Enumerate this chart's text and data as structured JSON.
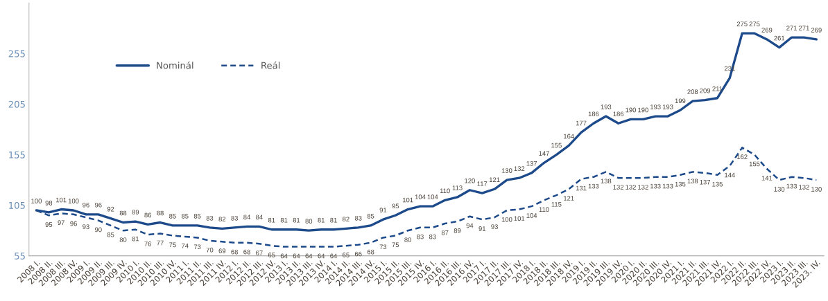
{
  "chart_data": {
    "type": "line",
    "categories": [
      "2008 I.",
      "2008 II.",
      "2008 III.",
      "2008 IV.",
      "2009 I.",
      "2009 II.",
      "2009 III.",
      "2009 IV.",
      "2010 I.",
      "2010 II.",
      "2010 III.",
      "2010 IV.",
      "2011 I.",
      "2011 II.",
      "2011 III.",
      "2011 IV.",
      "2012 I.",
      "2012 II.",
      "2012 III.",
      "2012 IV.",
      "2013 I.",
      "2013 II.",
      "2013 III.",
      "2013 IV.",
      "2014 I.",
      "2014 II.",
      "2014 III.",
      "2014 IV.",
      "2015 I.",
      "2015 II.",
      "2015 III.",
      "2015 IV.",
      "2016 I.",
      "2016 II.",
      "2016 III.",
      "2016 IV.",
      "2017 I.",
      "2017 II.",
      "2017 III.",
      "2017 IV.",
      "2018 I.",
      "2018 II.",
      "2018 III.",
      "2018 IV.",
      "2019 I.",
      "2019 II.",
      "2019 III.",
      "2019 IV.",
      "2020 I.",
      "2020 II.",
      "2020 III.",
      "2020 IV.",
      "2021 I.",
      "2021 II.",
      "2021 III.",
      "2021 IV.",
      "2022 I.",
      "2022 II.",
      "2022 III.",
      "2022 IV.",
      "2023 I.",
      "2023 II.",
      "2023 III.",
      "2023. IV."
    ],
    "series": [
      {
        "name": "Nominál",
        "color": "#1c4a8a",
        "line_style": "solid",
        "values": [
          100,
          98,
          101,
          100,
          96,
          96,
          92,
          88,
          89,
          86,
          88,
          85,
          85,
          85,
          83,
          82,
          83,
          84,
          84,
          81,
          81,
          81,
          80,
          81,
          81,
          82,
          83,
          85,
          91,
          95,
          101,
          104,
          104,
          110,
          113,
          120,
          117,
          121,
          130,
          132,
          137,
          147,
          155,
          164,
          177,
          186,
          193,
          186,
          190,
          190,
          193,
          193,
          199,
          208,
          209,
          211,
          231,
          275,
          275,
          269,
          261,
          271,
          271,
          269
        ]
      },
      {
        "name": "Reál",
        "color": "#1c4a8a",
        "line_style": "dashed",
        "values": [
          100,
          95,
          97,
          96,
          93,
          90,
          85,
          80,
          81,
          76,
          77,
          75,
          74,
          73,
          70,
          69,
          68,
          68,
          67,
          65,
          64,
          64,
          64,
          64,
          64,
          65,
          66,
          68,
          73,
          75,
          80,
          83,
          83,
          87,
          89,
          94,
          91,
          93,
          100,
          101,
          104,
          110,
          115,
          121,
          131,
          133,
          138,
          132,
          132,
          132,
          133,
          133,
          135,
          138,
          137,
          135,
          144,
          162,
          155,
          141,
          130,
          133,
          132,
          130
        ],
        "value_labels": [
          null,
          "95",
          "97",
          "96",
          "93",
          "90",
          "85",
          "80",
          "81",
          "76",
          "77",
          "75",
          "74",
          "73",
          "70",
          "69",
          "68",
          "68",
          "67",
          "65",
          "64",
          "64",
          "64",
          "64",
          "64",
          "65",
          "66",
          "68",
          "73",
          "75",
          "80",
          "83",
          "83",
          "87",
          "89",
          "94",
          "91",
          "93",
          "100",
          "101",
          "104",
          "110",
          "115",
          "121",
          "131",
          "133",
          "138",
          "132",
          "132",
          "132",
          "133",
          "133",
          "135",
          "138",
          "137",
          "135",
          "144",
          "162",
          "155",
          "141",
          "130",
          "133",
          "132",
          "130"
        ]
      }
    ],
    "data_labels": true,
    "ylim": [
      55,
      305
    ],
    "yticks": [
      55,
      105,
      155,
      205,
      255
    ],
    "grid": false,
    "legend": "top left",
    "marker": "none"
  }
}
